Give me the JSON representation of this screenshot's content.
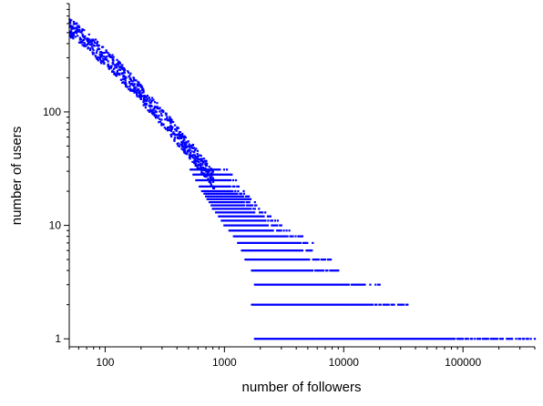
{
  "chart_data": {
    "type": "scatter",
    "title": "",
    "xlabel": "number of followers",
    "ylabel": "number of users",
    "xscale": "log",
    "yscale": "log",
    "xlim": [
      50,
      400000
    ],
    "ylim": [
      0.85,
      900
    ],
    "x_ticks": [
      100,
      1000,
      10000,
      100000
    ],
    "x_tick_labels": [
      "100",
      "1000",
      "10000",
      "100000"
    ],
    "y_ticks": [
      1,
      10,
      100
    ],
    "y_tick_labels": [
      "1",
      "10",
      "100"
    ],
    "marker_color": "#0000ff",
    "grid": false,
    "legend": false,
    "series": [
      {
        "points": [
          [
            50,
            560
          ],
          [
            55,
            520
          ],
          [
            60,
            490
          ],
          [
            70,
            430
          ],
          [
            80,
            380
          ],
          [
            90,
            330
          ],
          [
            100,
            300
          ],
          [
            120,
            255
          ],
          [
            150,
            200
          ],
          [
            180,
            165
          ],
          [
            200,
            145
          ],
          [
            250,
            110
          ],
          [
            300,
            90
          ],
          [
            350,
            75
          ],
          [
            400,
            62
          ],
          [
            500,
            48
          ],
          [
            600,
            38
          ],
          [
            700,
            31
          ],
          [
            800,
            25
          ],
          [
            1000,
            18
          ],
          [
            1200,
            14
          ],
          [
            1500,
            11
          ],
          [
            2000,
            8
          ],
          [
            3000,
            5
          ],
          [
            5000,
            3
          ],
          [
            8000,
            2
          ],
          [
            15000,
            2
          ],
          [
            30000,
            2
          ],
          [
            100000,
            1
          ],
          [
            400000,
            1
          ]
        ],
        "count_ranges": [
          {
            "count": 1,
            "x_min": 1800,
            "x_max": 400000
          },
          {
            "count": 2,
            "x_min": 1700,
            "x_max": 38000
          },
          {
            "count": 3,
            "x_min": 1800,
            "x_max": 20000
          },
          {
            "count": 4,
            "x_min": 1700,
            "x_max": 9000
          },
          {
            "count": 5,
            "x_min": 1500,
            "x_max": 8000
          },
          {
            "count": 6,
            "x_min": 1400,
            "x_max": 6000
          },
          {
            "count": 7,
            "x_min": 1300,
            "x_max": 5500
          },
          {
            "count": 8,
            "x_min": 1200,
            "x_max": 4500
          },
          {
            "count": 9,
            "x_min": 1100,
            "x_max": 3500
          },
          {
            "count": 10,
            "x_min": 1000,
            "x_max": 3000
          },
          {
            "count": 11,
            "x_min": 950,
            "x_max": 2800
          },
          {
            "count": 12,
            "x_min": 900,
            "x_max": 2500
          },
          {
            "count": 13,
            "x_min": 850,
            "x_max": 2200
          },
          {
            "count": 14,
            "x_min": 800,
            "x_max": 2000
          },
          {
            "count": 15,
            "x_min": 780,
            "x_max": 1900
          },
          {
            "count": 16,
            "x_min": 750,
            "x_max": 1800
          },
          {
            "count": 17,
            "x_min": 720,
            "x_max": 1700
          },
          {
            "count": 18,
            "x_min": 700,
            "x_max": 1600
          },
          {
            "count": 19,
            "x_min": 680,
            "x_max": 1500
          },
          {
            "count": 20,
            "x_min": 650,
            "x_max": 1450
          },
          {
            "count": 22,
            "x_min": 620,
            "x_max": 1350
          },
          {
            "count": 25,
            "x_min": 580,
            "x_max": 1250
          },
          {
            "count": 28,
            "x_min": 550,
            "x_max": 1150
          },
          {
            "count": 31,
            "x_min": 520,
            "x_max": 1050
          }
        ]
      }
    ]
  }
}
